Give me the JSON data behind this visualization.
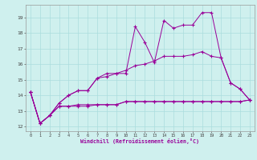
{
  "xlabel": "Windchill (Refroidissement éolien,°C)",
  "bg_color": "#cff0ee",
  "line_color": "#990099",
  "grid_color": "#aadddd",
  "x_data": [
    0,
    1,
    2,
    3,
    4,
    5,
    6,
    7,
    8,
    9,
    10,
    11,
    12,
    13,
    14,
    15,
    16,
    17,
    18,
    19,
    20,
    21,
    22,
    23
  ],
  "line1": [
    14.2,
    12.2,
    12.7,
    13.5,
    14.0,
    14.3,
    14.3,
    15.1,
    15.2,
    15.4,
    15.4,
    18.4,
    17.4,
    16.1,
    18.8,
    18.3,
    18.5,
    18.5,
    19.3,
    19.3,
    16.4,
    14.8,
    14.4,
    13.7
  ],
  "line2": [
    14.2,
    12.2,
    12.7,
    13.5,
    14.0,
    14.3,
    14.3,
    15.1,
    15.4,
    15.4,
    15.6,
    15.9,
    16.0,
    16.2,
    16.5,
    16.5,
    16.5,
    16.6,
    16.8,
    16.5,
    16.4,
    14.8,
    14.4,
    13.7
  ],
  "line3": [
    14.2,
    12.2,
    12.7,
    13.3,
    13.3,
    13.3,
    13.3,
    13.4,
    13.4,
    13.4,
    13.6,
    13.6,
    13.6,
    13.6,
    13.6,
    13.6,
    13.6,
    13.6,
    13.6,
    13.6,
    13.6,
    13.6,
    13.6,
    13.7
  ],
  "line4": [
    14.2,
    12.2,
    12.7,
    13.3,
    13.3,
    13.4,
    13.4,
    13.4,
    13.4,
    13.4,
    13.6,
    13.6,
    13.6,
    13.6,
    13.6,
    13.6,
    13.6,
    13.6,
    13.6,
    13.6,
    13.6,
    13.6,
    13.6,
    13.7
  ],
  "ylim": [
    11.7,
    19.8
  ],
  "xlim": [
    -0.5,
    23.5
  ],
  "yticks": [
    12,
    13,
    14,
    15,
    16,
    17,
    18,
    19
  ],
  "xticks": [
    0,
    1,
    2,
    3,
    4,
    5,
    6,
    7,
    8,
    9,
    10,
    11,
    12,
    13,
    14,
    15,
    16,
    17,
    18,
    19,
    20,
    21,
    22,
    23
  ]
}
